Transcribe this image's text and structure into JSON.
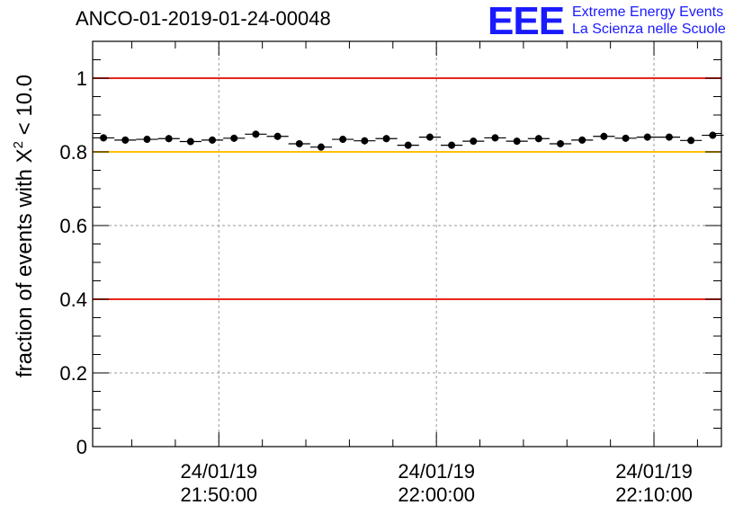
{
  "header": {
    "title": "ANCO-01-2019-01-24-00048",
    "logo_mark": "EEE",
    "logo_line1": "Extreme Energy Events",
    "logo_line2": "La Scienza nelle Scuole"
  },
  "chart_data": {
    "type": "scatter",
    "title": "ANCO-01-2019-01-24-00048",
    "xlabel": "",
    "ylabel_prefix": "fraction of events with ",
    "ylabel_symbol": "X",
    "ylabel_sup": "2",
    "ylabel_suffix": " < 10.0",
    "xlim_minutes": [
      -5.8,
      23.1
    ],
    "ylim": [
      0,
      1.1
    ],
    "grid": true,
    "y_ticks": [
      {
        "value": 0,
        "label": "0"
      },
      {
        "value": 0.2,
        "label": "0.2"
      },
      {
        "value": 0.4,
        "label": "0.4"
      },
      {
        "value": 0.6,
        "label": "0.6"
      },
      {
        "value": 0.8,
        "label": "0.8"
      },
      {
        "value": 1.0,
        "label": "1"
      }
    ],
    "x_ticks": [
      {
        "minute": 0,
        "date": "24/01/19",
        "time": "21:50:00"
      },
      {
        "minute": 10,
        "date": "24/01/19",
        "time": "22:00:00"
      },
      {
        "minute": 20,
        "date": "24/01/19",
        "time": "22:10:00"
      }
    ],
    "reference_lines": [
      {
        "value": 1.0,
        "color": "#e8271a"
      },
      {
        "value": 0.8,
        "color": "#ffc000"
      },
      {
        "value": 0.4,
        "color": "#e8271a"
      }
    ],
    "bin_width_minutes": 1,
    "series": [
      {
        "name": "fraction",
        "x_minutes": [
          -5.3,
          -4.3,
          -3.3,
          -2.3,
          -1.3,
          -0.3,
          0.7,
          1.7,
          2.7,
          3.7,
          4.7,
          5.7,
          6.7,
          7.7,
          8.7,
          9.7,
          10.7,
          11.7,
          12.7,
          13.7,
          14.7,
          15.7,
          16.7,
          17.7,
          18.7,
          19.7,
          20.7,
          21.7,
          22.7
        ],
        "values": [
          0.838,
          0.832,
          0.834,
          0.836,
          0.828,
          0.832,
          0.837,
          0.848,
          0.842,
          0.822,
          0.813,
          0.834,
          0.83,
          0.836,
          0.818,
          0.84,
          0.818,
          0.829,
          0.838,
          0.829,
          0.836,
          0.822,
          0.832,
          0.842,
          0.837,
          0.84,
          0.84,
          0.831,
          0.845
        ]
      }
    ]
  }
}
